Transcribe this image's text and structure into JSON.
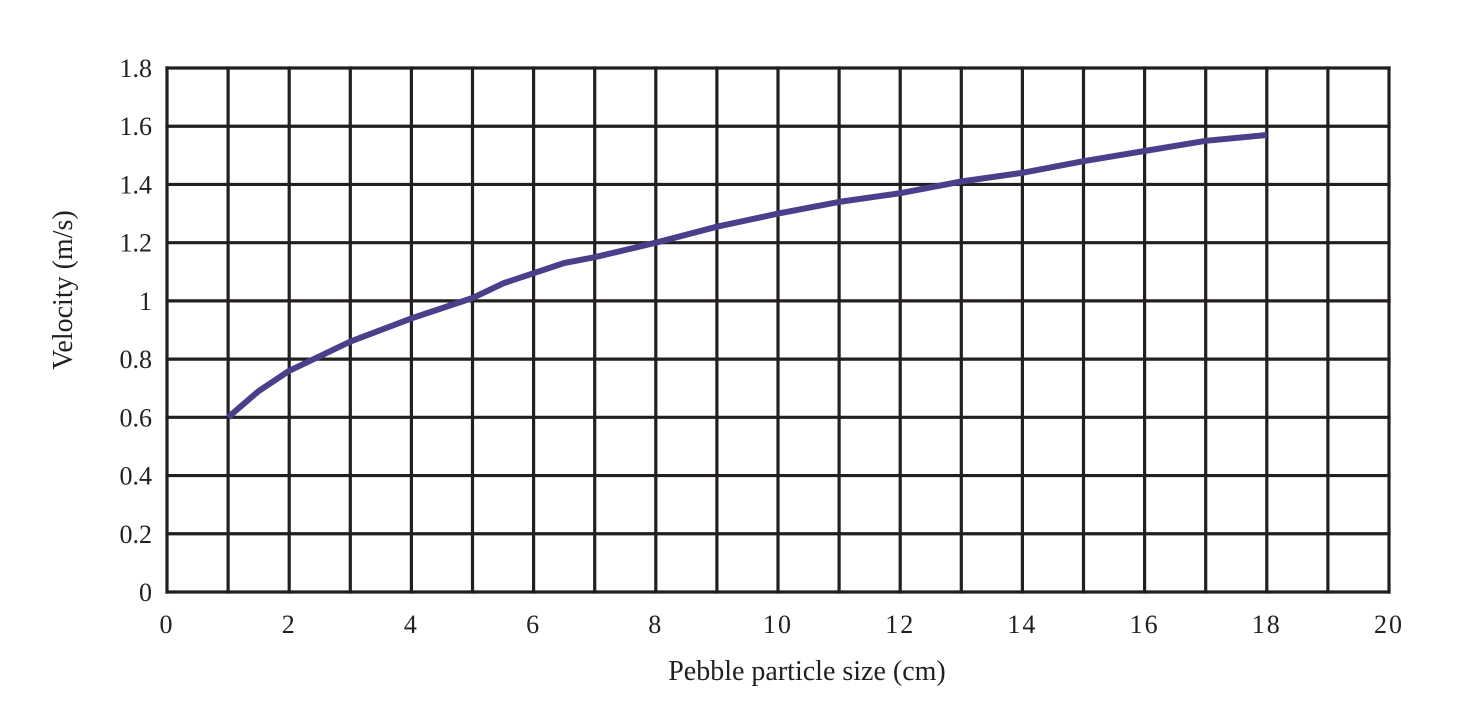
{
  "chart_data": {
    "type": "line",
    "title": "",
    "xlabel": "Pebble particle size (cm)",
    "ylabel": "Velocity (m/s)",
    "xlim": [
      0,
      20
    ],
    "ylim": [
      0,
      1.8
    ],
    "grid": true,
    "xticks": [
      {
        "value": 0,
        "label": "0"
      },
      {
        "value": 2,
        "label": "2"
      },
      {
        "value": 4,
        "label": "4"
      },
      {
        "value": 6,
        "label": "6"
      },
      {
        "value": 8,
        "label": "8"
      },
      {
        "value": 10,
        "label": "10"
      },
      {
        "value": 12,
        "label": "12"
      },
      {
        "value": 14,
        "label": "14"
      },
      {
        "value": 16,
        "label": "16"
      },
      {
        "value": 18,
        "label": "18"
      },
      {
        "value": 20,
        "label": "20"
      }
    ],
    "yticks": [
      {
        "value": 0,
        "label": "0"
      },
      {
        "value": 0.2,
        "label": "0.2"
      },
      {
        "value": 0.4,
        "label": "0.4"
      },
      {
        "value": 0.6,
        "label": "0.6"
      },
      {
        "value": 0.8,
        "label": "0.8"
      },
      {
        "value": 1.0,
        "label": "1"
      },
      {
        "value": 1.2,
        "label": "1.2"
      },
      {
        "value": 1.4,
        "label": "1.4"
      },
      {
        "value": 1.6,
        "label": "1.6"
      },
      {
        "value": 1.8,
        "label": "1.8"
      }
    ],
    "grid_x_step": 1,
    "grid_y_step": 0.2,
    "series": [
      {
        "color": "#4b3f8c",
        "points": [
          {
            "x": 1.0,
            "y": 0.6
          },
          {
            "x": 1.5,
            "y": 0.69
          },
          {
            "x": 2.0,
            "y": 0.76
          },
          {
            "x": 2.5,
            "y": 0.81
          },
          {
            "x": 3.0,
            "y": 0.86
          },
          {
            "x": 4.0,
            "y": 0.94
          },
          {
            "x": 5.0,
            "y": 1.01
          },
          {
            "x": 5.5,
            "y": 1.06
          },
          {
            "x": 6.5,
            "y": 1.13
          },
          {
            "x": 7.0,
            "y": 1.15
          },
          {
            "x": 8.0,
            "y": 1.2
          },
          {
            "x": 9.0,
            "y": 1.255
          },
          {
            "x": 10.0,
            "y": 1.3
          },
          {
            "x": 11.0,
            "y": 1.34
          },
          {
            "x": 12.0,
            "y": 1.37
          },
          {
            "x": 13.0,
            "y": 1.41
          },
          {
            "x": 14.0,
            "y": 1.44
          },
          {
            "x": 15.0,
            "y": 1.48
          },
          {
            "x": 16.0,
            "y": 1.515
          },
          {
            "x": 17.0,
            "y": 1.55
          },
          {
            "x": 18.0,
            "y": 1.57
          }
        ]
      }
    ]
  },
  "colors": {
    "grid": "#231f20",
    "line": "#4b3f8c",
    "text": "#231f20"
  }
}
